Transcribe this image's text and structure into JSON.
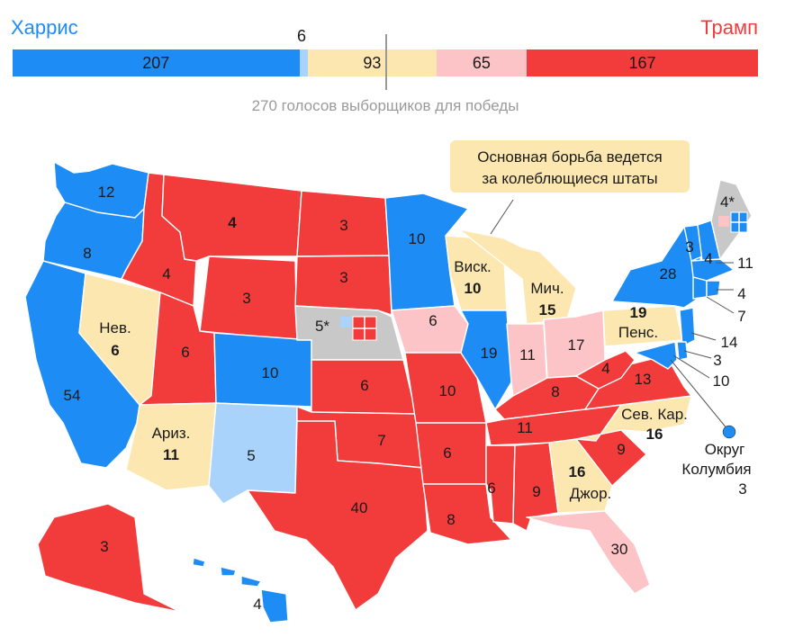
{
  "header": {
    "harris_label": "Харрис",
    "trump_label": "Трамп",
    "goal_text": "270 голосов выборщиков для победы",
    "lean_blue_marker": "6"
  },
  "bar": [
    {
      "key": "solid_harris",
      "value": 207,
      "label": "207",
      "color": "#1e8cf5"
    },
    {
      "key": "lean_harris",
      "value": 6,
      "label": "",
      "color": "#a9d3fb"
    },
    {
      "key": "tossup",
      "value": 93,
      "label": "93",
      "color": "#fde7b0"
    },
    {
      "key": "lean_trump",
      "value": 65,
      "label": "65",
      "color": "#fcc4c7"
    },
    {
      "key": "solid_trump",
      "value": 167,
      "label": "167",
      "color": "#f23c3c"
    }
  ],
  "colors": {
    "solid_harris": "#1e8cf5",
    "lean_harris": "#a9d3fb",
    "tossup": "#fde7b0",
    "lean_trump": "#fcc4c7",
    "solid_trump": "#f23c3c",
    "split": "#c8c8c8"
  },
  "callout": {
    "line1": "Основная борьба ведется",
    "line2": "за колеблющиеся штаты"
  },
  "states": {
    "WA": "12",
    "OR": "8",
    "CA": "54",
    "NV_name": "Нев.",
    "NV": "6",
    "ID": "4",
    "MT": "4",
    "WY": "3",
    "UT": "6",
    "AZ_name": "Ариз.",
    "AZ": "11",
    "CO": "10",
    "NM": "5",
    "ND": "3",
    "SD": "3",
    "NE": "5*",
    "KS": "6",
    "OK": "7",
    "TX": "40",
    "MN": "10",
    "IA": "6",
    "MO": "10",
    "AR": "6",
    "LA": "8",
    "WI_name": "Виск.",
    "WI": "10",
    "IL": "19",
    "MI_name": "Мич.",
    "MI": "15",
    "IN": "11",
    "OH": "17",
    "KY": "8",
    "TN": "11",
    "MS": "6",
    "AL": "9",
    "GA_name": "Джор.",
    "GA": "16",
    "FL": "30",
    "SC": "9",
    "NC_name": "Сев. Кар.",
    "NC": "16",
    "VA": "13",
    "WV": "4",
    "PA_name": "Пенс.",
    "PA": "19",
    "NY": "28",
    "VT": "3",
    "NH": "4",
    "ME": "4*",
    "MA": "11",
    "RI": "4",
    "CT": "7",
    "NJ": "14",
    "DE": "3",
    "MD": "10",
    "DC_line1": "Округ",
    "DC_line2": "Колумбия",
    "DC": "3",
    "AK": "3",
    "HI": "4"
  }
}
